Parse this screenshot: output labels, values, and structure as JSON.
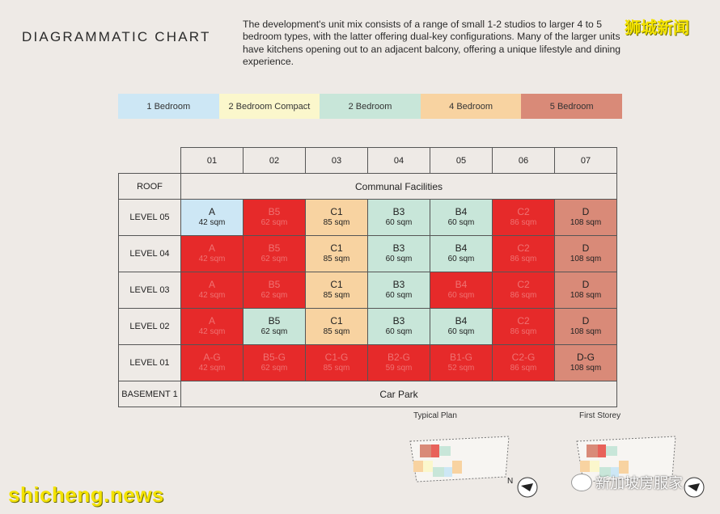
{
  "title": "DIAGRAMMATIC CHART",
  "description": "The development's unit mix consists of a range of small 1-2 studios to larger 4 to 5 bedroom types, with the latter offering dual-key configurations. Many of the larger units have kitchens opening out to an adjacent balcony, offering a unique lifestyle and dining experience.",
  "watermark_top": "狮城新闻",
  "watermark_bottom": "shicheng.news",
  "wechat_label": "新加坡房服家",
  "legend": [
    {
      "label": "1 Bedroom",
      "color": "#cde7f5"
    },
    {
      "label": "2 Bedroom Compact",
      "color": "#fbf7cc"
    },
    {
      "label": "2 Bedroom",
      "color": "#c8e6d9"
    },
    {
      "label": "4 Bedroom",
      "color": "#f8d3a1"
    },
    {
      "label": "5 Bedroom",
      "color": "#d98a78"
    }
  ],
  "sold_color": "#e62a2a",
  "columns": [
    "01",
    "02",
    "03",
    "04",
    "05",
    "06",
    "07"
  ],
  "roof": {
    "label": "ROOF",
    "content": "Communal Facilities"
  },
  "basement": {
    "label": "BASEMENT 1",
    "content": "Car Park"
  },
  "levels": [
    {
      "label": "LEVEL 05",
      "units": [
        {
          "code": "A",
          "size": "42 sqm",
          "type": "1bed"
        },
        {
          "code": "B5",
          "size": "62 sqm",
          "type": "sold"
        },
        {
          "code": "C1",
          "size": "85 sqm",
          "type": "4bed"
        },
        {
          "code": "B3",
          "size": "60 sqm",
          "type": "2bed"
        },
        {
          "code": "B4",
          "size": "60 sqm",
          "type": "2bed"
        },
        {
          "code": "C2",
          "size": "86 sqm",
          "type": "sold"
        },
        {
          "code": "D",
          "size": "108 sqm",
          "type": "5bed"
        }
      ]
    },
    {
      "label": "LEVEL 04",
      "units": [
        {
          "code": "A",
          "size": "42 sqm",
          "type": "sold"
        },
        {
          "code": "B5",
          "size": "62 sqm",
          "type": "sold"
        },
        {
          "code": "C1",
          "size": "85 sqm",
          "type": "4bed"
        },
        {
          "code": "B3",
          "size": "60 sqm",
          "type": "2bed"
        },
        {
          "code": "B4",
          "size": "60 sqm",
          "type": "2bed"
        },
        {
          "code": "C2",
          "size": "86 sqm",
          "type": "sold"
        },
        {
          "code": "D",
          "size": "108 sqm",
          "type": "5bed"
        }
      ]
    },
    {
      "label": "LEVEL 03",
      "units": [
        {
          "code": "A",
          "size": "42 sqm",
          "type": "sold"
        },
        {
          "code": "B5",
          "size": "62 sqm",
          "type": "sold"
        },
        {
          "code": "C1",
          "size": "85 sqm",
          "type": "4bed"
        },
        {
          "code": "B3",
          "size": "60 sqm",
          "type": "2bed"
        },
        {
          "code": "B4",
          "size": "60 sqm",
          "type": "sold"
        },
        {
          "code": "C2",
          "size": "86 sqm",
          "type": "sold"
        },
        {
          "code": "D",
          "size": "108 sqm",
          "type": "5bed"
        }
      ]
    },
    {
      "label": "LEVEL 02",
      "units": [
        {
          "code": "A",
          "size": "42 sqm",
          "type": "sold"
        },
        {
          "code": "B5",
          "size": "62 sqm",
          "type": "2bed"
        },
        {
          "code": "C1",
          "size": "85 sqm",
          "type": "4bed"
        },
        {
          "code": "B3",
          "size": "60 sqm",
          "type": "2bed"
        },
        {
          "code": "B4",
          "size": "60 sqm",
          "type": "2bed"
        },
        {
          "code": "C2",
          "size": "86 sqm",
          "type": "sold"
        },
        {
          "code": "D",
          "size": "108 sqm",
          "type": "5bed"
        }
      ]
    },
    {
      "label": "LEVEL 01",
      "units": [
        {
          "code": "A-G",
          "size": "42 sqm",
          "type": "sold"
        },
        {
          "code": "B5-G",
          "size": "62 sqm",
          "type": "sold"
        },
        {
          "code": "C1-G",
          "size": "85 sqm",
          "type": "sold"
        },
        {
          "code": "B2-G",
          "size": "59 sqm",
          "type": "sold"
        },
        {
          "code": "B1-G",
          "size": "52 sqm",
          "type": "sold"
        },
        {
          "code": "C2-G",
          "size": "86 sqm",
          "type": "sold"
        },
        {
          "code": "D-G",
          "size": "108 sqm",
          "type": "5bed"
        }
      ]
    }
  ],
  "plans": [
    {
      "label": "Typical Plan"
    },
    {
      "label": "First Storey"
    }
  ],
  "compass_label": "N"
}
